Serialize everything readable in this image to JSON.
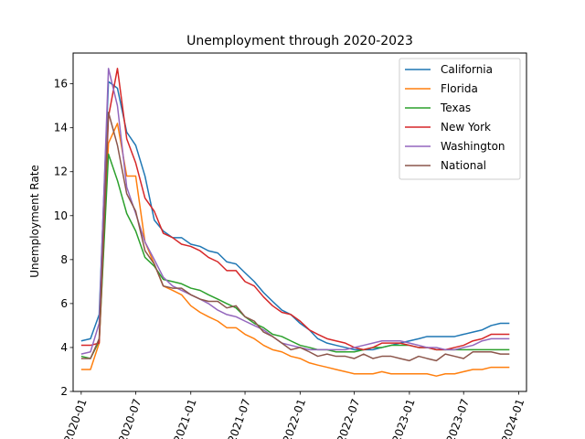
{
  "chart_data": {
    "type": "line",
    "title": "Unemployment through 2020-2023",
    "xlabel": "",
    "ylabel": "Unemployment Rate",
    "ylim": [
      2,
      17.4
    ],
    "xlim": [
      "2019-12-05",
      "2024-01-27"
    ],
    "yticks": [
      2,
      4,
      6,
      8,
      10,
      12,
      14,
      16
    ],
    "xticks": [
      {
        "date": "2020-01-01",
        "label": "2020-01"
      },
      {
        "date": "2020-07-01",
        "label": "2020-07"
      },
      {
        "date": "2021-01-01",
        "label": "2021-01"
      },
      {
        "date": "2021-07-01",
        "label": "2021-07"
      },
      {
        "date": "2022-01-01",
        "label": "2022-01"
      },
      {
        "date": "2022-07-01",
        "label": "2022-07"
      },
      {
        "date": "2023-01-01",
        "label": "2023-01"
      },
      {
        "date": "2023-07-01",
        "label": "2023-07"
      },
      {
        "date": "2024-01-01",
        "label": "2024-01"
      }
    ],
    "x": [
      "2020-01-01",
      "2020-02-01",
      "2020-03-01",
      "2020-04-01",
      "2020-05-01",
      "2020-06-01",
      "2020-07-01",
      "2020-08-01",
      "2020-09-01",
      "2020-10-01",
      "2020-11-01",
      "2020-12-01",
      "2021-01-01",
      "2021-02-01",
      "2021-03-01",
      "2021-04-01",
      "2021-05-01",
      "2021-06-01",
      "2021-07-01",
      "2021-08-01",
      "2021-09-01",
      "2021-10-01",
      "2021-11-01",
      "2021-12-01",
      "2022-01-01",
      "2022-02-01",
      "2022-03-01",
      "2022-04-01",
      "2022-05-01",
      "2022-06-01",
      "2022-07-01",
      "2022-08-01",
      "2022-09-01",
      "2022-10-01",
      "2022-11-01",
      "2022-12-01",
      "2023-01-01",
      "2023-02-01",
      "2023-03-01",
      "2023-04-01",
      "2023-05-01",
      "2023-06-01",
      "2023-07-01",
      "2023-08-01",
      "2023-09-01",
      "2023-10-01",
      "2023-11-01",
      "2023-12-01"
    ],
    "series": [
      {
        "name": "California",
        "color": "#1f77b4",
        "values": [
          4.3,
          4.4,
          5.5,
          16.1,
          15.8,
          13.8,
          13.2,
          11.8,
          9.8,
          9.3,
          9.0,
          9.0,
          8.7,
          8.6,
          8.4,
          8.3,
          7.9,
          7.8,
          7.4,
          7.0,
          6.5,
          6.1,
          5.7,
          5.5,
          5.1,
          4.8,
          4.4,
          4.2,
          4.1,
          4.0,
          3.9,
          3.9,
          3.9,
          4.0,
          4.1,
          4.2,
          4.3,
          4.4,
          4.5,
          4.5,
          4.5,
          4.5,
          4.6,
          4.7,
          4.8,
          5.0,
          5.1,
          5.1
        ]
      },
      {
        "name": "Florida",
        "color": "#ff7f0e",
        "values": [
          3.0,
          3.0,
          4.2,
          13.3,
          14.2,
          11.8,
          11.8,
          8.8,
          7.8,
          6.8,
          6.6,
          6.4,
          5.9,
          5.6,
          5.4,
          5.2,
          4.9,
          4.9,
          4.6,
          4.4,
          4.1,
          3.9,
          3.8,
          3.6,
          3.5,
          3.3,
          3.2,
          3.1,
          3.0,
          2.9,
          2.8,
          2.8,
          2.8,
          2.9,
          2.8,
          2.8,
          2.8,
          2.8,
          2.8,
          2.7,
          2.8,
          2.8,
          2.9,
          3.0,
          3.0,
          3.1,
          3.1,
          3.1
        ]
      },
      {
        "name": "Texas",
        "color": "#2ca02c",
        "values": [
          3.6,
          3.5,
          4.3,
          12.8,
          11.6,
          10.1,
          9.3,
          8.1,
          7.7,
          7.1,
          7.0,
          6.9,
          6.7,
          6.6,
          6.4,
          6.2,
          6.0,
          5.8,
          5.4,
          5.1,
          4.9,
          4.6,
          4.5,
          4.3,
          4.1,
          4.0,
          3.9,
          3.9,
          3.8,
          3.8,
          3.8,
          3.9,
          4.0,
          4.0,
          4.1,
          4.1,
          4.1,
          4.0,
          4.0,
          3.9,
          3.9,
          3.9,
          3.9,
          3.9,
          3.9,
          3.9,
          3.9,
          3.9
        ]
      },
      {
        "name": "New York",
        "color": "#d62728",
        "values": [
          4.1,
          4.1,
          4.2,
          14.5,
          16.7,
          13.5,
          12.4,
          10.8,
          10.2,
          9.2,
          9.0,
          8.7,
          8.6,
          8.4,
          8.1,
          7.9,
          7.5,
          7.5,
          7.0,
          6.8,
          6.3,
          5.9,
          5.6,
          5.5,
          5.2,
          4.8,
          4.6,
          4.4,
          4.3,
          4.2,
          4.0,
          3.9,
          4.0,
          4.2,
          4.2,
          4.2,
          4.1,
          4.0,
          4.0,
          3.9,
          3.9,
          4.0,
          4.1,
          4.3,
          4.4,
          4.6,
          4.6,
          4.6
        ]
      },
      {
        "name": "Washington",
        "color": "#9467bd",
        "values": [
          3.7,
          3.8,
          5.1,
          16.7,
          15.0,
          11.3,
          10.1,
          8.8,
          8.0,
          7.2,
          6.8,
          6.6,
          6.4,
          6.2,
          6.0,
          5.7,
          5.5,
          5.4,
          5.2,
          5.0,
          4.8,
          4.5,
          4.2,
          4.1,
          4.0,
          3.9,
          3.9,
          3.9,
          3.9,
          3.9,
          4.0,
          4.1,
          4.2,
          4.3,
          4.3,
          4.3,
          4.2,
          4.1,
          4.0,
          4.0,
          3.9,
          3.9,
          4.0,
          4.1,
          4.3,
          4.4,
          4.4,
          4.4
        ]
      },
      {
        "name": "National",
        "color": "#8c564b",
        "values": [
          3.5,
          3.5,
          4.4,
          14.7,
          13.2,
          11.0,
          10.2,
          8.4,
          7.8,
          6.8,
          6.7,
          6.7,
          6.4,
          6.2,
          6.1,
          6.1,
          5.8,
          5.9,
          5.4,
          5.2,
          4.7,
          4.5,
          4.2,
          3.9,
          4.0,
          3.8,
          3.6,
          3.7,
          3.6,
          3.6,
          3.5,
          3.7,
          3.5,
          3.6,
          3.6,
          3.5,
          3.4,
          3.6,
          3.5,
          3.4,
          3.7,
          3.6,
          3.5,
          3.8,
          3.8,
          3.8,
          3.7,
          3.7
        ]
      }
    ],
    "legend": "top-right",
    "grid": false
  }
}
